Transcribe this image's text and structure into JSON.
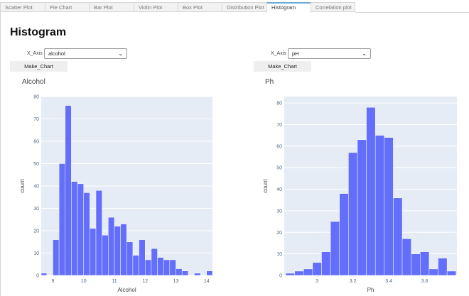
{
  "tabs": [
    {
      "label": "Scatter Plot"
    },
    {
      "label": "Pie Chart"
    },
    {
      "label": "Bar Plot"
    },
    {
      "label": "Violin Plot"
    },
    {
      "label": "Box Plot"
    },
    {
      "label": "Distribution Plot"
    },
    {
      "label": "Histogram",
      "active": true
    },
    {
      "label": "Correlation plot"
    }
  ],
  "page_title": "Histogram",
  "left_control": {
    "label": "X_Axis",
    "value": "alcohol",
    "button": "Make_Chart"
  },
  "right_control": {
    "label": "X_Axis",
    "value": "pH",
    "button": "Make_Chart"
  },
  "colors": {
    "bar": "#636efa",
    "plot_bg": "#e5ecf6",
    "active_tab": "#72a7d8"
  },
  "chart_data": [
    {
      "type": "bar",
      "title": "Alcohol",
      "xlabel": "Alcohol",
      "ylabel": "count",
      "xlim": [
        8.62,
        14.19
      ],
      "ylim": [
        0,
        80
      ],
      "xticks": [
        9,
        10,
        11,
        12,
        13,
        14
      ],
      "yticks": [
        0,
        10,
        20,
        30,
        40,
        50,
        60,
        70,
        80
      ],
      "grid": true,
      "bin_width": 0.2,
      "bin_starts": [
        8.6,
        8.8,
        9.0,
        9.2,
        9.4,
        9.6,
        9.8,
        10.0,
        10.2,
        10.4,
        10.6,
        10.8,
        11.0,
        11.2,
        11.4,
        11.6,
        11.8,
        12.0,
        12.2,
        12.4,
        12.6,
        12.8,
        13.0,
        13.2,
        13.4,
        13.6,
        13.8,
        14.0
      ],
      "values": [
        1,
        0,
        16,
        50,
        76,
        42,
        41,
        37,
        21,
        38,
        18,
        26,
        22,
        23,
        15,
        9,
        16,
        7,
        12,
        8,
        7,
        7,
        3,
        2,
        0,
        1,
        0,
        2
      ]
    },
    {
      "type": "bar",
      "title": "Ph",
      "xlabel": "Ph",
      "ylabel": "count",
      "xlim": [
        2.817,
        3.78
      ],
      "ylim": [
        0,
        83
      ],
      "xticks": [
        3,
        3.2,
        3.4,
        3.6
      ],
      "yticks": [
        0,
        10,
        20,
        30,
        40,
        50,
        60,
        70,
        80
      ],
      "grid": true,
      "bin_width": 0.05,
      "bin_starts": [
        2.825,
        2.875,
        2.925,
        2.975,
        3.025,
        3.075,
        3.125,
        3.175,
        3.225,
        3.275,
        3.325,
        3.375,
        3.425,
        3.475,
        3.525,
        3.575,
        3.625,
        3.675,
        3.725
      ],
      "values": [
        1,
        2,
        3,
        6,
        11,
        25,
        38,
        57,
        63,
        78,
        65,
        64,
        36,
        17,
        10,
        11,
        3,
        8,
        2
      ]
    }
  ]
}
